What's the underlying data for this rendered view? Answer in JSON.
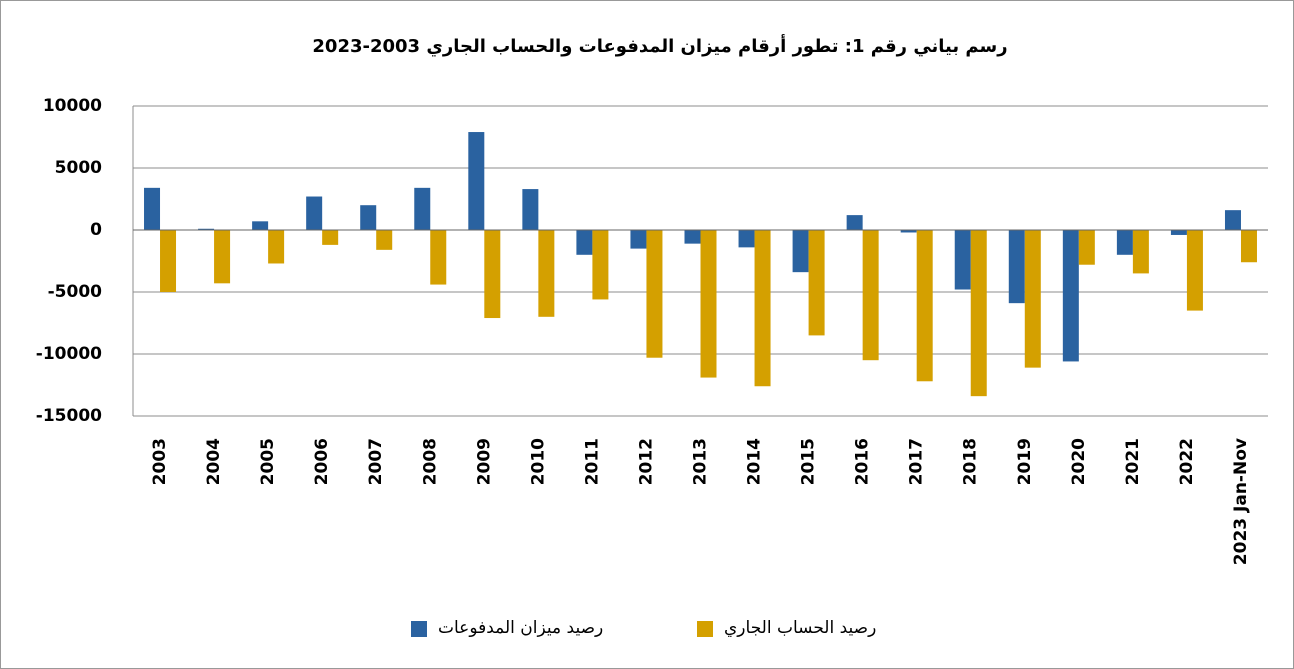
{
  "chart_data": {
    "type": "bar",
    "title": "رسم بياني رقم 1: تطور أرقام ميزان المدفوعات والحساب الجاري 2003-2023",
    "categories": [
      "2003",
      "2004",
      "2005",
      "2006",
      "2007",
      "2008",
      "2009",
      "2010",
      "2011",
      "2012",
      "2013",
      "2014",
      "2015",
      "2016",
      "2017",
      "2018",
      "2019",
      "2020",
      "2021",
      "2022",
      "2023 Jan-Nov"
    ],
    "series": [
      {
        "name": "رصيد ميزان المدفوعات",
        "color": "#2a62a0",
        "values": [
          3400,
          100,
          700,
          2700,
          2000,
          3400,
          7900,
          3300,
          -2000,
          -1500,
          -1100,
          -1400,
          -3400,
          1200,
          -200,
          -4800,
          -5900,
          -10600,
          -2000,
          -400,
          1600
        ]
      },
      {
        "name": "رصيد الحساب الجاري",
        "color": "#d4a000",
        "values": [
          -5000,
          -4300,
          -2700,
          -1200,
          -1600,
          -4400,
          -7100,
          -7000,
          -5600,
          -10300,
          -11900,
          -12600,
          -8500,
          -10500,
          -12200,
          -13400,
          -11100,
          -2800,
          -3500,
          -6500,
          -2600
        ]
      }
    ],
    "ylim": [
      -15000,
      10000
    ],
    "yticks": [
      -15000,
      -10000,
      -5000,
      0,
      5000,
      10000
    ],
    "grid": true,
    "legend": "bottom"
  }
}
